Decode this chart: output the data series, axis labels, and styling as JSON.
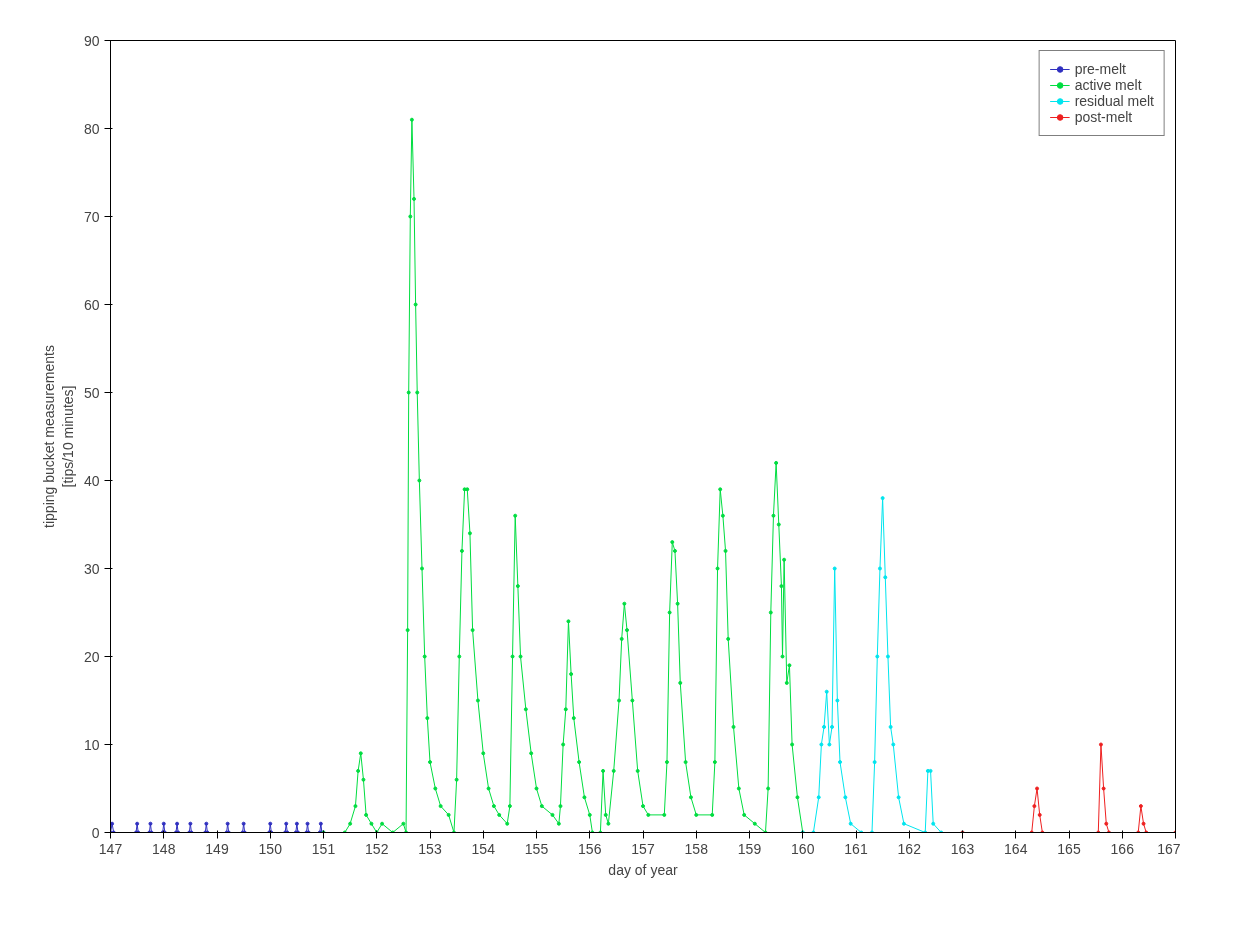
{
  "chart_data": {
    "type": "line",
    "xlabel": "day of year",
    "ylabel": "tipping bucket measurements\n[tips/10 minutes]",
    "xlim": [
      147,
      167
    ],
    "xticks": [
      147,
      148,
      149,
      150,
      151,
      152,
      153,
      154,
      155,
      156,
      157,
      158,
      159,
      160,
      161,
      162,
      163,
      164,
      165,
      166,
      167
    ],
    "ylim": [
      0,
      90
    ],
    "yticks": [
      0,
      10,
      20,
      30,
      40,
      50,
      60,
      70,
      80,
      90
    ],
    "grid": false,
    "legend": "top right",
    "marker": "circle",
    "line_style": "solid",
    "series": [
      {
        "name": "pre-melt",
        "color": "#3030c0",
        "x": [
          147.0,
          147.03,
          147.06,
          147.48,
          147.5,
          147.52,
          147.73,
          147.75,
          147.77,
          147.98,
          148.0,
          148.02,
          148.23,
          148.25,
          148.27,
          148.48,
          148.5,
          148.52,
          148.78,
          148.8,
          148.82,
          149.18,
          149.2,
          149.22,
          149.48,
          149.5,
          149.52,
          149.98,
          150.0,
          150.02,
          150.28,
          150.3,
          150.32,
          150.48,
          150.5,
          150.52,
          150.68,
          150.7,
          150.72,
          150.93,
          150.95,
          150.97,
          151.0
        ],
        "values": [
          0,
          1,
          0,
          0,
          1,
          0,
          0,
          1,
          0,
          0,
          1,
          0,
          0,
          1,
          0,
          0,
          1,
          0,
          0,
          1,
          0,
          0,
          1,
          0,
          0,
          1,
          0,
          0,
          1,
          0,
          0,
          1,
          0,
          0,
          1,
          0,
          0,
          1,
          0,
          0,
          1,
          0,
          0
        ]
      },
      {
        "name": "active melt",
        "color": "#00dd40",
        "x": [
          151.0,
          151.4,
          151.5,
          151.6,
          151.65,
          151.7,
          151.75,
          151.8,
          151.9,
          152.0,
          152.1,
          152.3,
          152.5,
          152.55,
          152.58,
          152.6,
          152.63,
          152.66,
          152.7,
          152.73,
          152.76,
          152.8,
          152.85,
          152.9,
          152.95,
          153.0,
          153.1,
          153.2,
          153.35,
          153.45,
          153.5,
          153.55,
          153.6,
          153.65,
          153.7,
          153.75,
          153.8,
          153.9,
          154.0,
          154.1,
          154.2,
          154.3,
          154.45,
          154.5,
          154.55,
          154.6,
          154.65,
          154.7,
          154.8,
          154.9,
          155.0,
          155.1,
          155.3,
          155.42,
          155.45,
          155.5,
          155.55,
          155.6,
          155.65,
          155.7,
          155.8,
          155.9,
          156.0,
          156.05,
          156.2,
          156.25,
          156.3,
          156.35,
          156.45,
          156.55,
          156.6,
          156.65,
          156.7,
          156.8,
          156.9,
          157.0,
          157.1,
          157.4,
          157.45,
          157.5,
          157.55,
          157.6,
          157.65,
          157.7,
          157.8,
          157.9,
          158.0,
          158.3,
          158.35,
          158.4,
          158.45,
          158.5,
          158.55,
          158.6,
          158.7,
          158.8,
          158.9,
          159.1,
          159.3,
          159.35,
          159.4,
          159.45,
          159.5,
          159.55,
          159.6,
          159.62,
          159.65,
          159.7,
          159.75,
          159.8,
          159.9,
          160.0
        ],
        "values": [
          0,
          0,
          1,
          3,
          7,
          9,
          6,
          2,
          1,
          0,
          1,
          0,
          1,
          0,
          23,
          50,
          70,
          81,
          72,
          60,
          50,
          40,
          30,
          20,
          13,
          8,
          5,
          3,
          2,
          0,
          6,
          20,
          32,
          39,
          39,
          34,
          23,
          15,
          9,
          5,
          3,
          2,
          1,
          3,
          20,
          36,
          28,
          20,
          14,
          9,
          5,
          3,
          2,
          1,
          3,
          10,
          14,
          24,
          18,
          13,
          8,
          4,
          2,
          0,
          0,
          7,
          2,
          1,
          7,
          15,
          22,
          26,
          23,
          15,
          7,
          3,
          2,
          2,
          8,
          25,
          33,
          32,
          26,
          17,
          8,
          4,
          2,
          2,
          8,
          30,
          39,
          36,
          32,
          22,
          12,
          5,
          2,
          1,
          0,
          5,
          25,
          36,
          42,
          35,
          28,
          20,
          31,
          17,
          19,
          10,
          4,
          0
        ]
      },
      {
        "name": "residual melt",
        "color": "#00e5ee",
        "x": [
          160.0,
          160.2,
          160.3,
          160.35,
          160.4,
          160.45,
          160.5,
          160.55,
          160.6,
          160.65,
          160.7,
          160.8,
          160.9,
          161.1,
          161.3,
          161.35,
          161.4,
          161.45,
          161.5,
          161.55,
          161.6,
          161.65,
          161.7,
          161.8,
          161.9,
          162.3,
          162.35,
          162.4,
          162.45,
          162.6,
          163.0
        ],
        "values": [
          0,
          0,
          4,
          10,
          12,
          16,
          10,
          12,
          30,
          15,
          8,
          4,
          1,
          0,
          0,
          8,
          20,
          30,
          38,
          29,
          20,
          12,
          10,
          4,
          1,
          0,
          7,
          7,
          1,
          0,
          0
        ]
      },
      {
        "name": "post-melt",
        "color": "#ee2020",
        "x": [
          163.0,
          164.3,
          164.35,
          164.4,
          164.45,
          164.5,
          165.55,
          165.6,
          165.65,
          165.7,
          165.75,
          166.3,
          166.35,
          166.4,
          166.45,
          167.0
        ],
        "values": [
          0,
          0,
          3,
          5,
          2,
          0,
          0,
          10,
          5,
          1,
          0,
          0,
          3,
          1,
          0,
          0
        ]
      }
    ]
  }
}
